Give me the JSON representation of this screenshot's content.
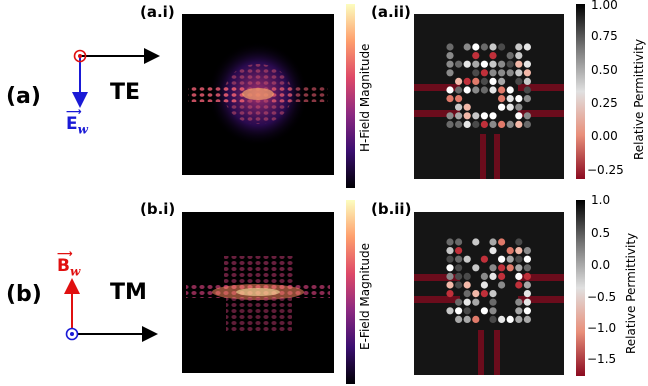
{
  "rows": [
    {
      "label": "(a)",
      "mode": "TE",
      "vector_label": "E",
      "vector_subscript": "w",
      "vector_color": "#1a1ad6",
      "field_panel_label": "(a.i)",
      "field_colorbar_label": "H-Field Magnitude",
      "perm_panel_label": "(a.ii)",
      "perm_colorbar_label": "Relative Permittivity",
      "perm_ticks": [
        "1.00",
        "0.75",
        "0.50",
        "0.25",
        "0.00",
        "−0.25"
      ]
    },
    {
      "label": "(b)",
      "mode": "TM",
      "vector_label": "B",
      "vector_subscript": "w",
      "vector_color": "#e01010",
      "field_panel_label": "(b.i)",
      "field_colorbar_label": "E-Field Magnitude",
      "perm_panel_label": "(b.ii)",
      "perm_colorbar_label": "Relative Permittivity",
      "perm_ticks": [
        "1.0",
        "0.5",
        "0.0",
        "−0.5",
        "−1.0",
        "−1.5"
      ]
    }
  ],
  "colors": {
    "waveguide": "#6b0c1c",
    "field_low": "#000004",
    "field_high": "#fcfdbf",
    "perm_high": "#ffffff",
    "perm_low": "#8b0a20"
  }
}
